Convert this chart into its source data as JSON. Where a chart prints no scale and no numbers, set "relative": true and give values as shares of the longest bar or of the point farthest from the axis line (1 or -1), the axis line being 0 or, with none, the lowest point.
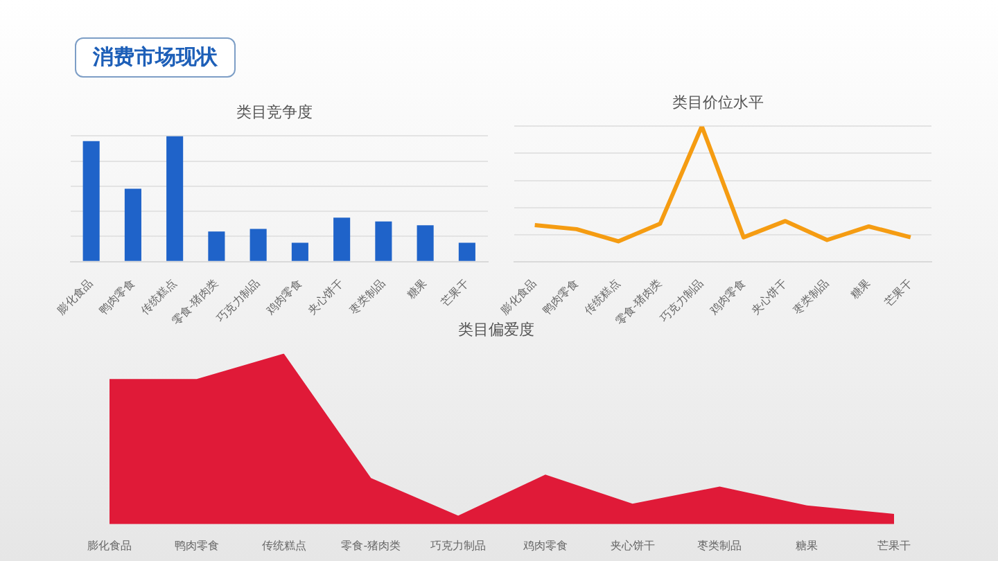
{
  "chart_data": [
    {
      "type": "other",
      "title": "消费市场现状"
    },
    {
      "type": "bar",
      "title": "类目竞争度",
      "categories": [
        "膨化食品",
        "鸭肉零食",
        "传统糕点",
        "零食-猪肉类",
        "巧克力制品",
        "鸡肉零食",
        "夹心饼干",
        "枣类制品",
        "糖果",
        "芒果干"
      ],
      "relative": true,
      "grid": "y",
      "series": [
        {
          "color": "#1f63c9",
          "values": [
            0.96,
            0.58,
            1,
            0.24,
            0.26,
            0.15,
            0.35,
            0.32,
            0.29,
            0.15
          ]
        }
      ]
    },
    {
      "type": "line",
      "title": "类目价位水平",
      "categories": [
        "膨化食品",
        "鸭肉零食",
        "传统糕点",
        "零食-猪肉类",
        "巧克力制品",
        "鸡肉零食",
        "夹心饼干",
        "枣类制品",
        "糖果",
        "芒果干"
      ],
      "relative": true,
      "grid": "y",
      "marker": "none",
      "series": [
        {
          "color": "#f59c12",
          "values": [
            0.27,
            0.24,
            0.15,
            0.28,
            1,
            0.18,
            0.3,
            0.16,
            0.26,
            0.18
          ]
        }
      ]
    },
    {
      "type": "area",
      "title": "类目偏爱度",
      "categories": [
        "膨化食品",
        "鸭肉零食",
        "传统糕点",
        "零食-猪肉类",
        "巧克力制品",
        "鸡肉零食",
        "夹心饼干",
        "枣类制品",
        "糖果",
        "芒果干"
      ],
      "relative": true,
      "series": [
        {
          "color": "#e01a38",
          "values": [
            0.85,
            0.85,
            1,
            0.27,
            0.05,
            0.29,
            0.12,
            0.22,
            0.11,
            0.06
          ]
        }
      ]
    }
  ]
}
